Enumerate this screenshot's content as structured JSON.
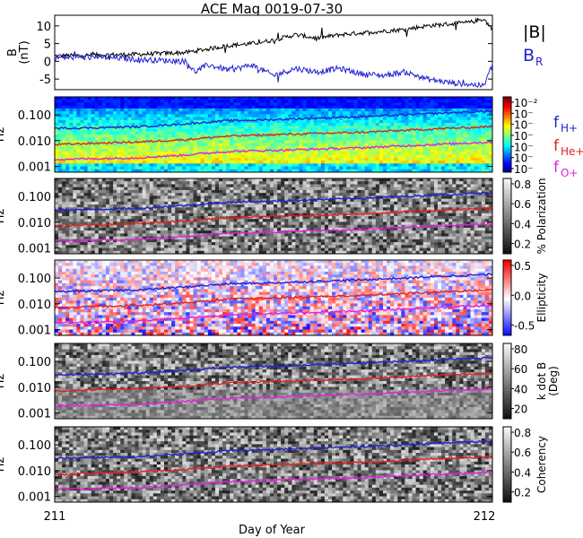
{
  "title": "ACE Mag 0019-07-30",
  "xlabel": "Day of Year",
  "x_ticks": [
    "211",
    "212"
  ],
  "chart_data": [
    {
      "type": "line",
      "ylabel": "B (nT)",
      "ylabel_lines": [
        "B",
        "(nT)"
      ],
      "ylim": [
        -8,
        13
      ],
      "yticks": [
        "10",
        "5",
        "0",
        "-5"
      ],
      "xlim": [
        211,
        212
      ],
      "legend": [
        {
          "label": "|B|",
          "color": "#000000"
        },
        {
          "label": "B",
          "sub": "R",
          "color": "#2020d0"
        }
      ],
      "series": [
        {
          "name": "|B|",
          "color": "#000000",
          "x": [
            211.0,
            211.1,
            211.2,
            211.3,
            211.35,
            211.4,
            211.45,
            211.5,
            211.55,
            211.6,
            211.65,
            211.7,
            211.75,
            211.8,
            211.85,
            211.9,
            211.95,
            211.98,
            212.0
          ],
          "y": [
            1.5,
            1.8,
            2.0,
            2.5,
            3.5,
            4.5,
            5.0,
            6.0,
            7.5,
            6.5,
            7.5,
            8.0,
            8.5,
            9.0,
            10.0,
            10.5,
            11.0,
            12.0,
            9.0
          ]
        },
        {
          "name": "B",
          "color": "#2020d0",
          "x": [
            211.0,
            211.1,
            211.2,
            211.3,
            211.32,
            211.35,
            211.4,
            211.45,
            211.5,
            211.55,
            211.6,
            211.65,
            211.7,
            211.75,
            211.8,
            211.85,
            211.9,
            211.95,
            211.98,
            212.0
          ],
          "y": [
            1.0,
            1.2,
            0.5,
            0.0,
            -3.0,
            -1.0,
            -2.5,
            -1.0,
            -4.0,
            -2.0,
            -3.0,
            -2.0,
            -3.5,
            -4.0,
            -3.0,
            -5.0,
            -6.0,
            -6.5,
            -7.0,
            -1.0
          ]
        }
      ]
    },
    {
      "type": "heatmap",
      "ylabel": "Hz",
      "yticks": [
        "0.100",
        "0.010",
        "0.001"
      ],
      "colorbar_ticks": [
        "10⁻²",
        "10⁻",
        "10⁻",
        "10⁻",
        "10⁻",
        "10⁻",
        "10⁻"
      ],
      "legend": [
        {
          "label": "f",
          "sub": "H+",
          "color": "#2020d0"
        },
        {
          "label": "f",
          "sub": "He+",
          "color": "#e02020"
        },
        {
          "label": "f",
          "sub": "O+",
          "color": "#e020e0"
        }
      ]
    },
    {
      "type": "heatmap",
      "ylabel": "Hz",
      "yticks": [
        "0.100",
        "0.010",
        "0.001"
      ],
      "colorbar_label": "% Polarization",
      "colorbar_ticks": [
        "0.8",
        "0.6",
        "0.4",
        "0.2"
      ]
    },
    {
      "type": "heatmap",
      "ylabel": "Hz",
      "yticks": [
        "0.100",
        "0.010",
        "0.001"
      ],
      "colorbar_label": "Ellipticity",
      "colorbar_ticks": [
        "0.5",
        "0.0",
        "-0.5"
      ]
    },
    {
      "type": "heatmap",
      "ylabel": "Hz",
      "yticks": [
        "0.100",
        "0.010",
        "0.001"
      ],
      "colorbar_label": "k dot B (Deg)",
      "colorbar_label_lines": [
        "k dot B",
        "(Deg)"
      ],
      "colorbar_ticks": [
        "80",
        "60",
        "40",
        "20"
      ]
    },
    {
      "type": "heatmap",
      "ylabel": "Hz",
      "yticks": [
        "0.100",
        "0.010",
        "0.001"
      ],
      "colorbar_label": "Coherency",
      "colorbar_ticks": [
        "0.8",
        "0.6",
        "0.4",
        "0.2"
      ]
    }
  ],
  "gyrofrequency_lines": {
    "x": [
      211.0,
      211.1,
      211.2,
      211.3,
      211.4,
      211.5,
      211.6,
      211.7,
      211.8,
      211.9,
      212.0
    ],
    "fH_hz": [
      0.03,
      0.032,
      0.035,
      0.045,
      0.06,
      0.065,
      0.075,
      0.085,
      0.1,
      0.12,
      0.14
    ],
    "fHe_hz": [
      0.007,
      0.008,
      0.009,
      0.011,
      0.015,
      0.017,
      0.019,
      0.021,
      0.025,
      0.03,
      0.035
    ],
    "fO_hz": [
      0.0019,
      0.002,
      0.0022,
      0.0028,
      0.0038,
      0.0042,
      0.0047,
      0.0053,
      0.0063,
      0.0075,
      0.0088
    ]
  }
}
